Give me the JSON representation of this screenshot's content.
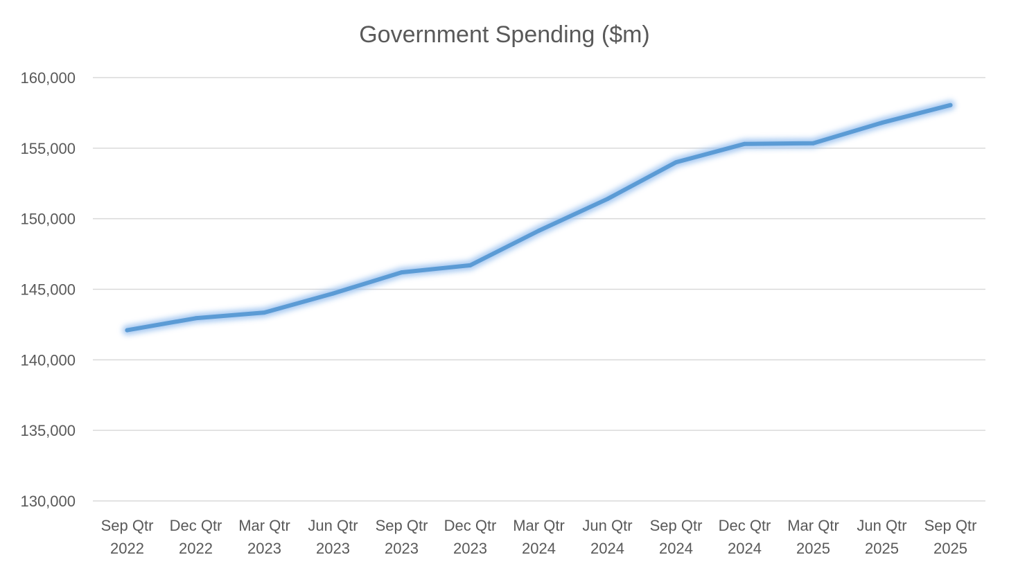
{
  "chart_data": {
    "type": "line",
    "title": "Government Spending ($m)",
    "xlabel": "",
    "ylabel": "",
    "categories": [
      [
        "Sep Qtr",
        "2022"
      ],
      [
        "Dec Qtr",
        "2022"
      ],
      [
        "Mar Qtr",
        "2023"
      ],
      [
        "Jun Qtr",
        "2023"
      ],
      [
        "Sep Qtr",
        "2023"
      ],
      [
        "Dec Qtr",
        "2023"
      ],
      [
        "Mar Qtr",
        "2024"
      ],
      [
        "Jun Qtr",
        "2024"
      ],
      [
        "Sep Qtr",
        "2024"
      ],
      [
        "Dec Qtr",
        "2024"
      ],
      [
        "Mar Qtr",
        "2025"
      ],
      [
        "Jun Qtr",
        "2025"
      ],
      [
        "Sep Qtr",
        "2025"
      ]
    ],
    "series": [
      {
        "values": [
          142100,
          142950,
          143350,
          144700,
          146200,
          146700,
          149150,
          151400,
          154000,
          155300,
          155350,
          156800,
          158050
        ],
        "color": "#5b9bd5",
        "glow_color": "#9dc3f0"
      }
    ],
    "ylim": [
      130000,
      160000
    ],
    "yticks": [
      130000,
      135000,
      140000,
      145000,
      150000,
      155000,
      160000
    ],
    "ytick_labels": [
      "130,000",
      "135,000",
      "140,000",
      "145,000",
      "150,000",
      "155,000",
      "160,000"
    ],
    "grid": true,
    "legend": "none"
  }
}
